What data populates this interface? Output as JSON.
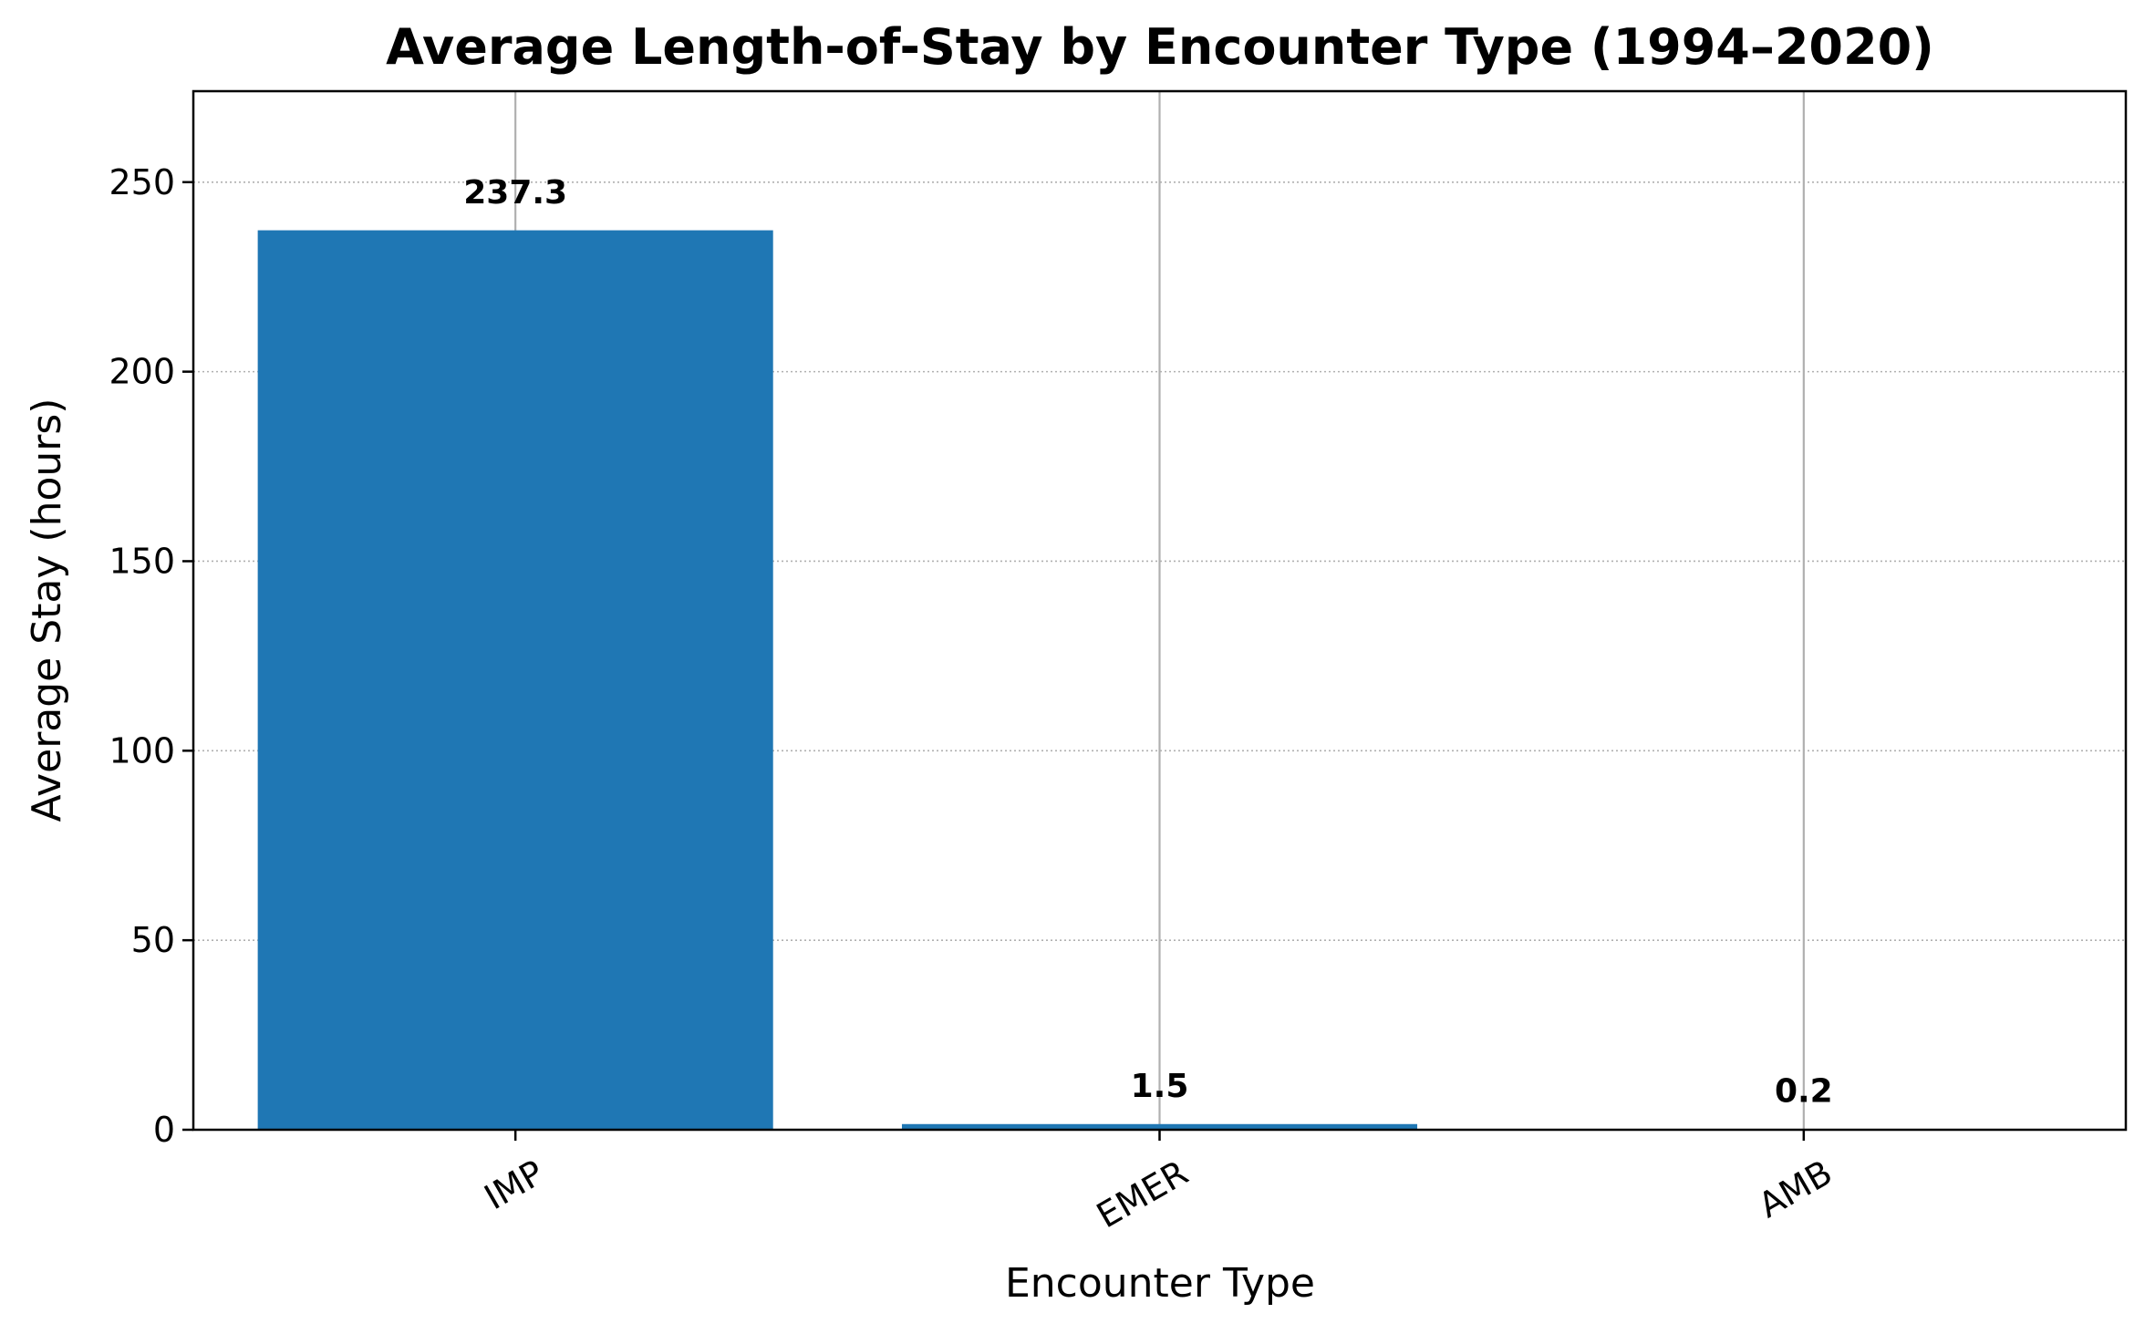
{
  "chart_data": {
    "type": "bar",
    "title": "Average Length-of-Stay by Encounter Type (1994–2020)",
    "xlabel": "Encounter Type",
    "ylabel": "Average Stay (hours)",
    "categories": [
      "IMP",
      "EMER",
      "AMB"
    ],
    "values": [
      237.3,
      1.5,
      0.2
    ],
    "data_labels": [
      "237.3",
      "1.5",
      "0.2"
    ],
    "ylim": [
      0,
      274
    ],
    "yticks": [
      0,
      50,
      100,
      150,
      200,
      250
    ],
    "ytick_labels": [
      "0",
      "50",
      "100",
      "150",
      "200",
      "250"
    ],
    "xtick_rotation_deg": -30,
    "grid": {
      "x": true,
      "y": true,
      "y_style": "dotted"
    },
    "bar_color": "#1f77b4",
    "gridline_color": "#b0b0b0",
    "legend": "none"
  }
}
